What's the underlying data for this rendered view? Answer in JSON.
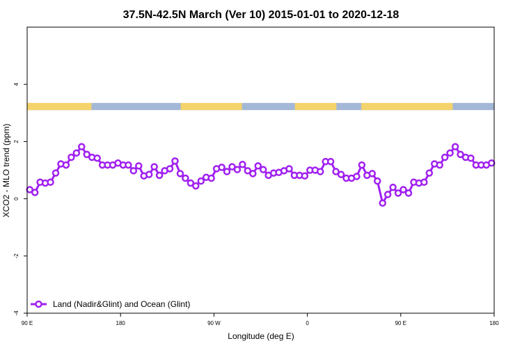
{
  "chart_data": {
    "type": "line",
    "title": "37.5N-42.5N March (Ver 10)   2015-01-01 to 2020-12-18",
    "xlabel": "Longitude (deg E)",
    "ylabel": "XCO2 - MLO trend (ppm)",
    "x_ticks": [
      {
        "value": 90,
        "label": "90 E"
      },
      {
        "value": 180,
        "label": "180"
      },
      {
        "value": 270,
        "label": "90 W"
      },
      {
        "value": 360,
        "label": "0"
      },
      {
        "value": 450,
        "label": "90 E"
      },
      {
        "value": 540,
        "label": "180"
      }
    ],
    "xlim": [
      90,
      540
    ],
    "y_ticks": [
      {
        "value": -4,
        "label": "-4"
      },
      {
        "value": -2,
        "label": "-2"
      },
      {
        "value": 0,
        "label": "0"
      },
      {
        "value": 2,
        "label": "2"
      },
      {
        "value": 4,
        "label": "4"
      }
    ],
    "ylim": [
      -4,
      6
    ],
    "grid": false,
    "legend_position": "bottom-left",
    "land_ocean_band": {
      "y_range": [
        3.1,
        3.35
      ],
      "ocean_color": "#a3b8d6",
      "land_color": "#f5d36c",
      "land_segments": [
        [
          90,
          152
        ],
        [
          238,
          297
        ],
        [
          348,
          388
        ],
        [
          412,
          500
        ]
      ]
    },
    "series": [
      {
        "name": "Land (Nadir&Glint) and Ocean (Glint)",
        "color": "#a020f0",
        "x": [
          92.5,
          97.5,
          102.5,
          107.5,
          112.5,
          117.5,
          122.5,
          127.5,
          132.5,
          137.5,
          142.5,
          147.5,
          152.5,
          157.5,
          162.5,
          167.5,
          172.5,
          177.5,
          182.5,
          187.5,
          192.5,
          197.5,
          202.5,
          207.5,
          212.5,
          217.5,
          222.5,
          227.5,
          232.5,
          237.5,
          242.5,
          247.5,
          252.5,
          257.5,
          262.5,
          267.5,
          272.5,
          277.5,
          282.5,
          287.5,
          292.5,
          297.5,
          302.5,
          307.5,
          312.5,
          317.5,
          322.5,
          327.5,
          332.5,
          337.5,
          342.5,
          347.5,
          352.5,
          357.5,
          362.5,
          367.5,
          372.5,
          377.5,
          382.5,
          387.5,
          392.5,
          397.5,
          402.5,
          407.5,
          412.5,
          417.5,
          422.5,
          427.5,
          432.5,
          437.5,
          442.5,
          447.5,
          452.5,
          457.5,
          462.5,
          467.5,
          472.5,
          477.5,
          482.5,
          487.5,
          492.5,
          497.5,
          502.5,
          507.5,
          512.5,
          517.5,
          522.5,
          527.5,
          532.5,
          537.5
        ],
        "y": [
          0.32,
          0.22,
          0.58,
          0.55,
          0.58,
          0.9,
          1.22,
          1.18,
          1.45,
          1.6,
          1.82,
          1.55,
          1.45,
          1.42,
          1.18,
          1.18,
          1.18,
          1.25,
          1.18,
          1.18,
          0.98,
          1.15,
          0.8,
          0.85,
          1.12,
          0.82,
          0.98,
          1.05,
          1.32,
          0.88,
          0.72,
          0.55,
          0.45,
          0.62,
          0.75,
          0.72,
          1.05,
          1.1,
          0.95,
          1.12,
          1.02,
          1.2,
          0.98,
          0.88,
          1.15,
          1.02,
          0.82,
          0.9,
          0.92,
          0.98,
          1.05,
          0.82,
          0.82,
          0.8,
          1.0,
          1.0,
          0.95,
          1.3,
          1.3,
          0.95,
          0.85,
          0.72,
          0.72,
          0.78,
          1.18,
          0.82,
          0.88,
          0.62,
          -0.15,
          0.15,
          0.4,
          0.2,
          0.32,
          0.2,
          0.58,
          0.55,
          0.58,
          0.9,
          1.22,
          1.18,
          1.45,
          1.6,
          1.82,
          1.55,
          1.45,
          1.42,
          1.18,
          1.18,
          1.18,
          1.25
        ]
      }
    ]
  }
}
